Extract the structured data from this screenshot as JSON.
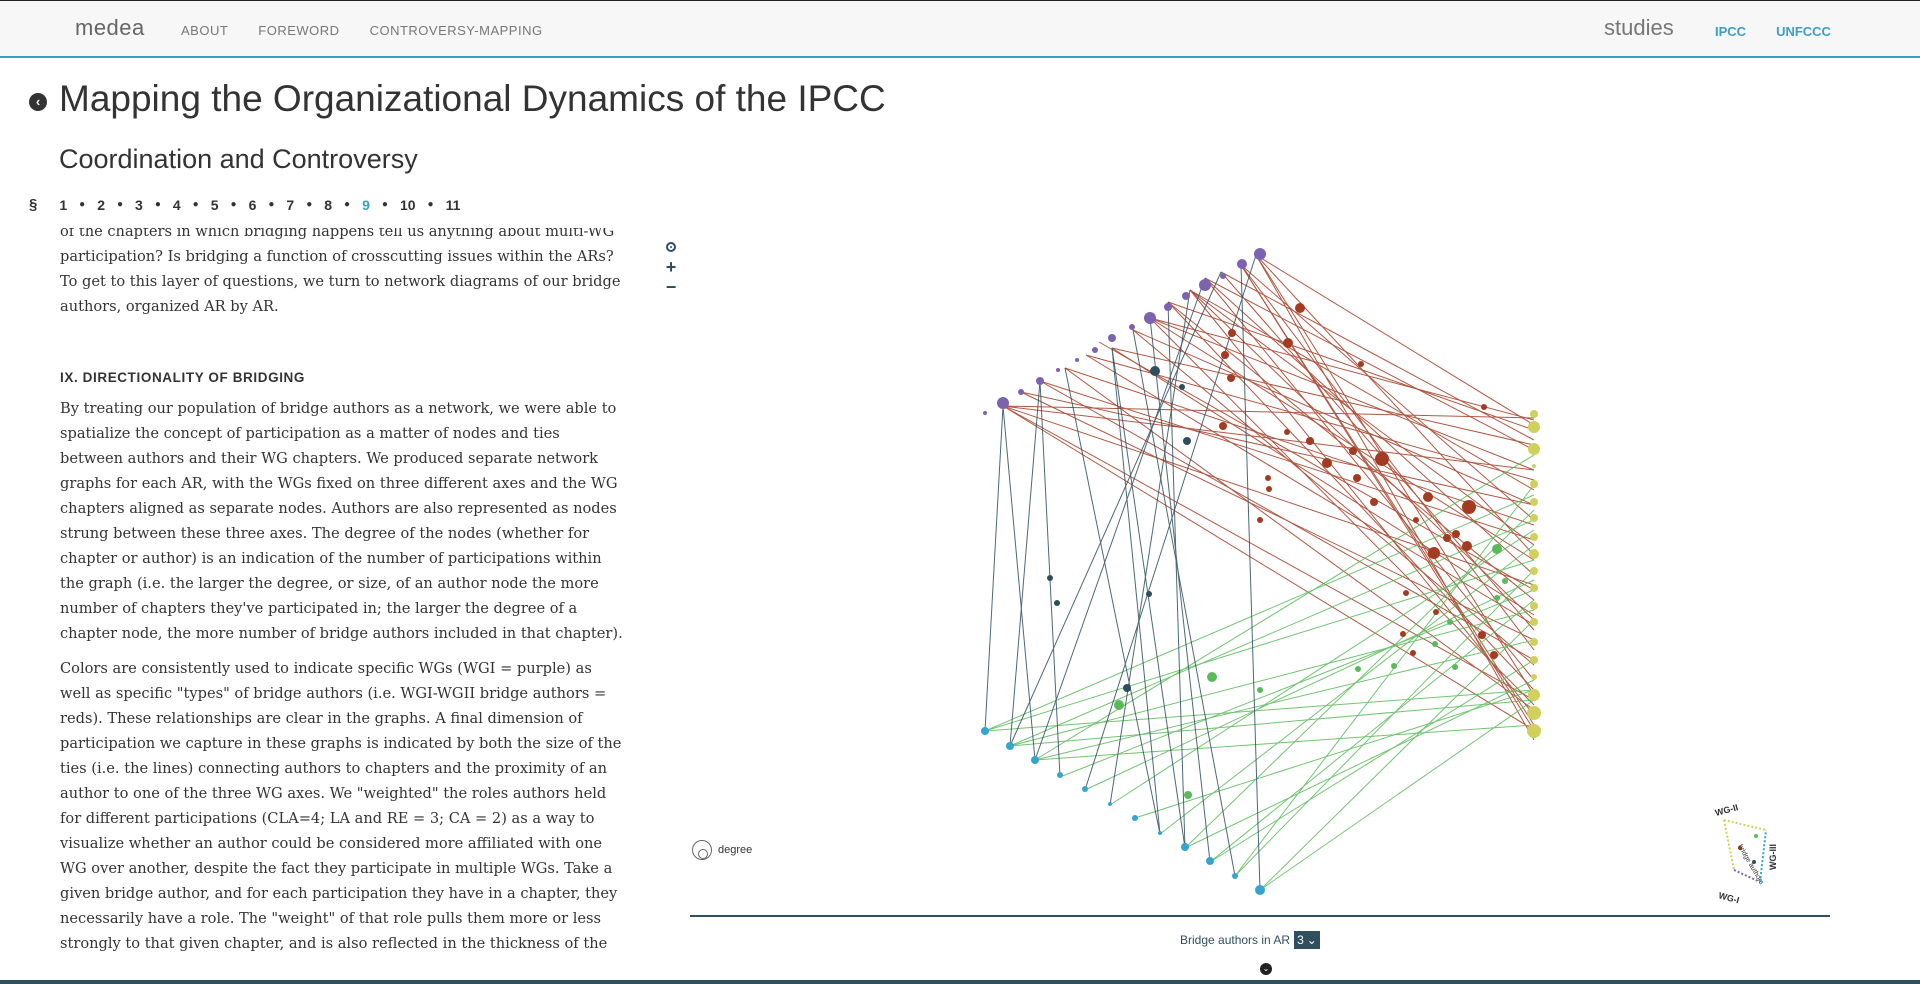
{
  "nav": {
    "brand": "medea",
    "links": [
      "ABOUT",
      "FOREWORD",
      "CONTROVERSY-MAPPING"
    ],
    "studies_label": "studies",
    "study_links": [
      "IPCC",
      "UNFCCC"
    ]
  },
  "header": {
    "title": "Mapping the Organizational Dynamics of the IPCC",
    "subtitle": "Coordination and Controversy"
  },
  "sections": {
    "symbol": "§",
    "items": [
      "1",
      "2",
      "3",
      "4",
      "5",
      "6",
      "7",
      "8",
      "9",
      "10",
      "11"
    ],
    "active": "9"
  },
  "article": {
    "clipped_line": "of the chapters in which bridging happens tell us anything about multi-WG",
    "intro_para": "participation? Is bridging a function of crosscutting issues within the ARs? To get to this layer of questions, we turn to network diagrams of our bridge authors, organized AR by AR.",
    "heading": "IX. DIRECTIONALITY OF BRIDGING",
    "para1": "By treating our population of bridge authors as a network, we were able to spatialize the concept of participation as a matter of nodes and ties between authors and their WG chapters. We produced separate network graphs for each AR, with the WGs fixed on three different axes and the WG chapters aligned as separate nodes. Authors are also represented as nodes strung between these three axes. The degree of the nodes (whether for chapter or author) is an indication of the number of participations within the graph (i.e. the larger the degree, or size, of an author node the more number of chapters they've participated in; the larger the degree of a chapter node, the more number of bridge authors included in that chapter).",
    "para2": "Colors are consistently used to indicate specific WGs (WGI = purple) as well as specific \"types\" of bridge authors (i.e. WGI-WGII bridge authors = reds). These relationships are clear in the graphs. A final dimension of participation we capture in these graphs is indicated by both the size of the ties (i.e. the lines) connecting authors to chapters and the proximity of an author to one of the three WG axes. We \"weighted\" the roles authors held for different participations (CLA=4; LA and RE = 3; CA = 2) as a way to visualize whether an author could be considered more affiliated with one WG over another, despite the fact they participate in multiple WGs. Take a given bridge author, and for each participation they have in a chapter, they necessarily have a role. The \"weight\" of that role pulls them more or less strongly to that given chapter, and is also reflected in the thickness of the tie. These graphs are zoomable, so feel free to"
  },
  "zoom": {
    "plus": "+",
    "minus": "−"
  },
  "legend": {
    "degree_label": "degree"
  },
  "axis_key": {
    "wg2": "WG-II",
    "wg3": "WG-III",
    "wg1": "WG-I",
    "center": "bridge authors"
  },
  "selector": {
    "label": "Bridge authors in AR",
    "value": "3"
  },
  "colors": {
    "accent": "#3c9ec7",
    "wg1": "#7b63b0",
    "wg2": "#cfd15a",
    "wg3": "#35a4cf",
    "wg1_wg2": "#a33a22",
    "wg2_wg3": "#5aba5a",
    "wg1_wg3": "#2e4e5e"
  }
}
